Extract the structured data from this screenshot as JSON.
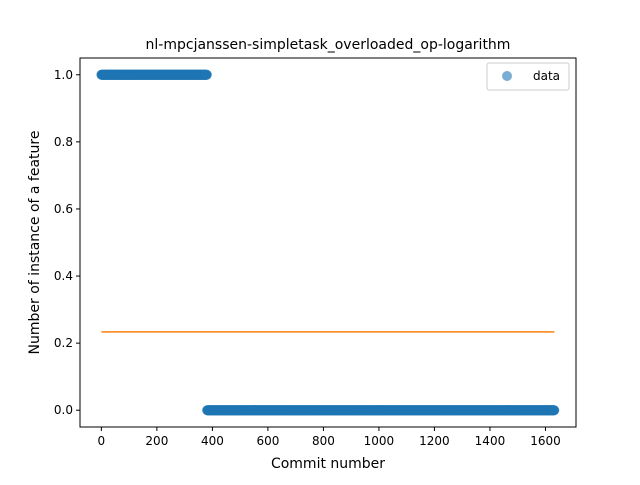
{
  "chart_data": {
    "type": "scatter",
    "title": "nl-mpcjanssen-simpletask_overloaded_op-logarithm",
    "xlabel": "Commit number",
    "ylabel": "Number of instance of a feature",
    "xlim": [
      -77,
      1710
    ],
    "ylim": [
      -0.05,
      1.05
    ],
    "xticks": [
      0,
      200,
      400,
      600,
      800,
      1000,
      1200,
      1400,
      1600
    ],
    "yticks": [
      0.0,
      0.2,
      0.4,
      0.6,
      0.8,
      1.0
    ],
    "xtick_labels": [
      "0",
      "200",
      "400",
      "600",
      "800",
      "1000",
      "1200",
      "1400",
      "1600"
    ],
    "ytick_labels": [
      "0.0",
      "0.2",
      "0.4",
      "0.6",
      "0.8",
      "1.0"
    ],
    "grid": false,
    "legend_position": "top-right",
    "series": [
      {
        "name": "data",
        "kind": "scatter",
        "color": "#1f77b4",
        "alpha": 0.6,
        "segments": [
          {
            "x_start": 0,
            "x_end": 380,
            "y": 1.0
          },
          {
            "x_start": 381,
            "x_end": 1632,
            "y": 0.0
          }
        ]
      },
      {
        "kind": "line",
        "color": "#ff7f0e",
        "x": [
          0,
          1632
        ],
        "y": [
          0.2335,
          0.2335
        ]
      }
    ]
  }
}
